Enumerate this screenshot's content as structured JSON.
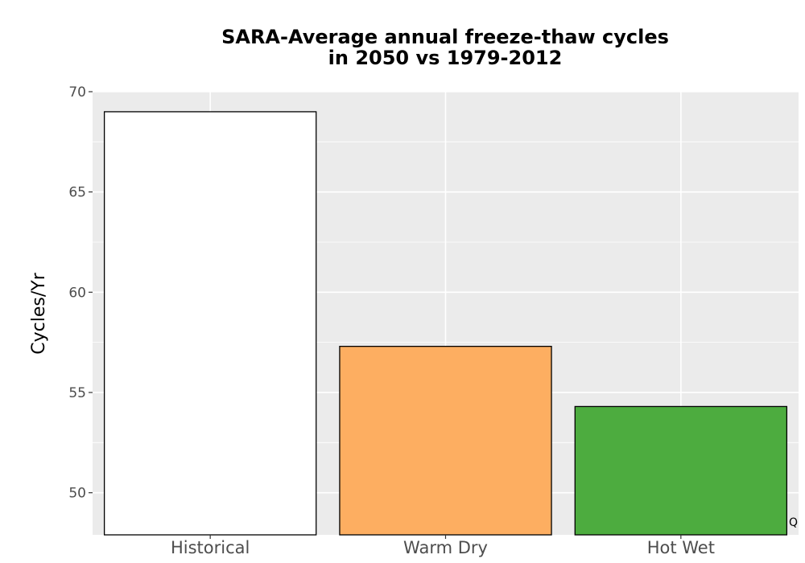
{
  "chart_data": {
    "type": "bar",
    "title_line1": "SARA-Average annual freeze-thaw cycles",
    "title_line2": "in 2050 vs 1979-2012",
    "xlabel": "",
    "ylabel": "Cycles/Yr",
    "categories": [
      "Historical",
      "Warm Dry",
      "Hot Wet"
    ],
    "values": [
      69.0,
      57.3,
      54.3
    ],
    "colors": [
      "#ffffff",
      "#fdae61",
      "#4dac3f"
    ],
    "ylim": [
      47.9,
      70.0
    ],
    "yticks": [
      50,
      55,
      60,
      65,
      70
    ],
    "grid": true,
    "legend": "none",
    "panel_background": "#ebebeb"
  },
  "corner_label": "Q"
}
